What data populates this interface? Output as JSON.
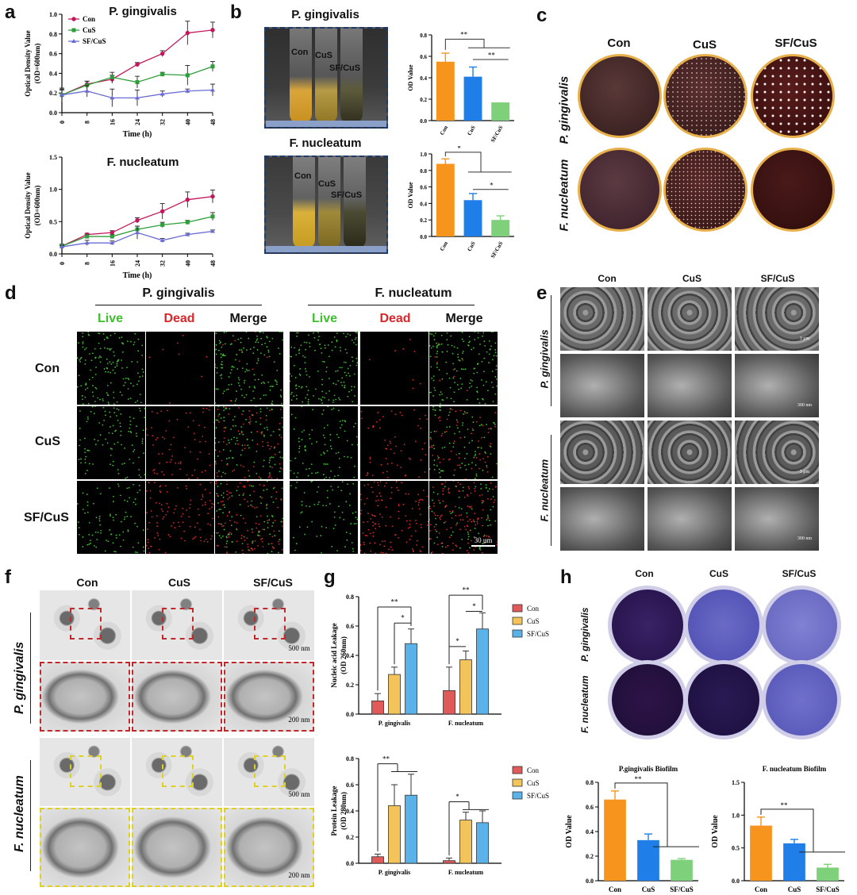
{
  "panels": {
    "a": {
      "label": "a",
      "colors": {
        "con": "#c2185b",
        "cus": "#2e9e3a",
        "sfcus": "#6b6bd6"
      },
      "plots": [
        {
          "title": "P. gingivalis",
          "ylabel1": "Optical  Density Value",
          "ylabel2": "(OD=600nm)",
          "xlabel": "Time  (h)",
          "x": [
            0,
            8,
            16,
            24,
            32,
            40,
            48
          ],
          "xticks": [
            "0",
            "8",
            "16",
            "24",
            "32",
            "40",
            "48"
          ],
          "yticks": [
            "0.0",
            "0.2",
            "0.4",
            "0.6",
            "0.8",
            "1.0"
          ],
          "ylim": [
            0,
            1.0
          ],
          "legend": [
            "Con",
            "CuS",
            "SF/CuS"
          ],
          "series": [
            {
              "name": "Con",
              "values": [
                0.18,
                0.29,
                0.34,
                0.49,
                0.6,
                0.81,
                0.84
              ],
              "err": [
                0.05,
                0.03,
                0.04,
                0.02,
                0.03,
                0.12,
                0.08
              ]
            },
            {
              "name": "CuS",
              "values": [
                0.18,
                0.28,
                0.36,
                0.31,
                0.39,
                0.38,
                0.47
              ],
              "err": [
                0.06,
                0.04,
                0.05,
                0.06,
                0.02,
                0.1,
                0.05
              ]
            },
            {
              "name": "SF/CuS",
              "values": [
                0.18,
                0.22,
                0.15,
                0.15,
                0.19,
                0.22,
                0.23
              ],
              "err": [
                0.07,
                0.06,
                0.09,
                0.08,
                0.03,
                0.02,
                0.06
              ]
            }
          ]
        },
        {
          "title": "F. nucleatum",
          "ylabel1": "Optical  Density Value",
          "ylabel2": "(OD=600nm)",
          "xlabel": "Time  (h)",
          "x": [
            0,
            8,
            16,
            24,
            32,
            40,
            48
          ],
          "xticks": [
            "0",
            "8",
            "16",
            "24",
            "32",
            "40",
            "48"
          ],
          "yticks": [
            "0.0",
            "0.5",
            "1.0",
            "1.5"
          ],
          "ylim": [
            0,
            1.5
          ],
          "series": [
            {
              "name": "Con",
              "values": [
                0.12,
                0.3,
                0.33,
                0.52,
                0.66,
                0.84,
                0.89
              ],
              "err": [
                0.03,
                0.02,
                0.03,
                0.04,
                0.12,
                0.12,
                0.1
              ]
            },
            {
              "name": "CuS",
              "values": [
                0.12,
                0.27,
                0.27,
                0.38,
                0.45,
                0.49,
                0.58
              ],
              "err": [
                0.03,
                0.03,
                0.03,
                0.05,
                0.04,
                0.03,
                0.06
              ]
            },
            {
              "name": "SF/CuS",
              "values": [
                0.11,
                0.17,
                0.17,
                0.33,
                0.21,
                0.3,
                0.35
              ],
              "err": [
                0.02,
                0.04,
                0.03,
                0.1,
                0.03,
                0.02,
                0.02
              ]
            }
          ]
        }
      ]
    },
    "b": {
      "label": "b",
      "photos": [
        {
          "title": "P. gingivalis",
          "tubes": [
            "Con",
            "CuS",
            "SF/CuS"
          ]
        },
        {
          "title": "F. nucleatum",
          "tubes": [
            "Con",
            "CuS",
            "SF/CuS"
          ]
        }
      ],
      "bars": [
        {
          "ylabel": "OD Value",
          "categories": [
            "Con",
            "CuS",
            "SF/CuS"
          ],
          "values": [
            0.55,
            0.41,
            0.17
          ],
          "err": [
            0.08,
            0.09,
            0.0
          ],
          "yticks": [
            "0.0",
            "0.2",
            "0.4",
            "0.6",
            "0.8"
          ],
          "ylim": [
            0,
            0.8
          ],
          "sig": [
            "**",
            "**"
          ]
        },
        {
          "ylabel": "OD Value",
          "categories": [
            "Con",
            "CuS",
            "SF/CuS"
          ],
          "values": [
            0.88,
            0.44,
            0.2
          ],
          "err": [
            0.06,
            0.08,
            0.05
          ],
          "yticks": [
            "0.0",
            "0.2",
            "0.4",
            "0.6",
            "0.8",
            "1.0"
          ],
          "ylim": [
            0,
            1.0
          ],
          "sig": [
            "*",
            "*"
          ]
        }
      ],
      "colors": [
        "#f7941d",
        "#1f7ee8",
        "#7ed07a"
      ]
    },
    "c": {
      "label": "c",
      "columns": [
        "Con",
        "CuS",
        "SF/CuS"
      ],
      "rows": [
        "P. gingivalis",
        "F. nucleatum"
      ]
    },
    "d": {
      "label": "d",
      "groups": [
        "P. gingivalis",
        "F. nucleatum"
      ],
      "channels": [
        "Live",
        "Dead",
        "Merge"
      ],
      "rows": [
        "Con",
        "CuS",
        "SF/CuS"
      ],
      "scalebar": "30 um",
      "colors": {
        "live": "#3fbf2f",
        "dead": "#d9262a"
      }
    },
    "e": {
      "label": "e",
      "columns": [
        "Con",
        "CuS",
        "SF/CuS"
      ],
      "rows": [
        "P. gingivalis",
        "F. nucleatum"
      ],
      "scalebars": [
        "3 μm",
        "300 nm",
        "3 μm",
        "300 nm"
      ]
    },
    "f": {
      "label": "f",
      "columns": [
        "Con",
        "CuS",
        "SF/CuS"
      ],
      "rows": [
        "P. gingivalis",
        "F. nucleatum"
      ],
      "scalebars": [
        "500 nm",
        "200 nm",
        "500 nm",
        "200 nm"
      ]
    },
    "g": {
      "label": "g",
      "legend": [
        "Con",
        "CuS",
        "SF/CuS"
      ],
      "colors": [
        "#e05a5a",
        "#f2c45a",
        "#5ab2e8"
      ],
      "charts": [
        {
          "ylabel1": "Nucleic acid Leakage",
          "ylabel2": "(OD 260nm)",
          "categories": [
            "P. gingivalis",
            "F. nucleatum"
          ],
          "yticks": [
            "0.0",
            "0.2",
            "0.4",
            "0.6",
            "0.8"
          ],
          "ylim": [
            0,
            0.8
          ],
          "series": [
            {
              "name": "Con",
              "values": [
                0.09,
                0.16
              ],
              "err": [
                0.05,
                0.16
              ]
            },
            {
              "name": "CuS",
              "values": [
                0.27,
                0.37
              ],
              "err": [
                0.05,
                0.06
              ]
            },
            {
              "name": "SF/CuS",
              "values": [
                0.48,
                0.58
              ],
              "err": [
                0.1,
                0.11
              ]
            }
          ],
          "sig": [
            "**",
            "*",
            "**",
            "*",
            "*"
          ]
        },
        {
          "ylabel1": "Protein Leakage",
          "ylabel2": "(OD 280nm)",
          "categories": [
            "P. gingivalis",
            "F. nucleatum"
          ],
          "yticks": [
            "0.0",
            "0.2",
            "0.4",
            "0.6",
            "0.8"
          ],
          "ylim": [
            0,
            0.8
          ],
          "series": [
            {
              "name": "Con",
              "values": [
                0.05,
                0.02
              ],
              "err": [
                0.02,
                0.02
              ]
            },
            {
              "name": "CuS",
              "values": [
                0.44,
                0.33
              ],
              "err": [
                0.16,
                0.06
              ]
            },
            {
              "name": "SF/CuS",
              "values": [
                0.52,
                0.31
              ],
              "err": [
                0.16,
                0.09
              ]
            }
          ],
          "sig": [
            "**",
            "*"
          ]
        }
      ]
    },
    "h": {
      "label": "h",
      "columns": [
        "Con",
        "CuS",
        "SF/CuS"
      ],
      "rows": [
        "P. gingivalis",
        "F. nucleatum"
      ],
      "colors": [
        "#f7941d",
        "#1f7ee8",
        "#7ed07a"
      ],
      "charts": [
        {
          "title": "P.gingivalis Biofilm",
          "ylabel": "OD Value",
          "categories": [
            "Con",
            "CuS",
            "SF/CuS"
          ],
          "values": [
            0.66,
            0.33,
            0.17
          ],
          "err": [
            0.07,
            0.05,
            0.01
          ],
          "yticks": [
            "0.0",
            "0.2",
            "0.4",
            "0.6",
            "0.8"
          ],
          "ylim": [
            0,
            0.8
          ],
          "sig": "**"
        },
        {
          "title": "F. nucleatum Biofilm",
          "ylabel": "OD Value",
          "categories": [
            "Con",
            "CuS",
            "SF/CuS"
          ],
          "values": [
            0.84,
            0.57,
            0.2
          ],
          "err": [
            0.13,
            0.06,
            0.05
          ],
          "yticks": [
            "0.0",
            "0.5",
            "1.0",
            "1.5"
          ],
          "ylim": [
            0,
            1.5
          ],
          "sig": "**"
        }
      ]
    }
  }
}
